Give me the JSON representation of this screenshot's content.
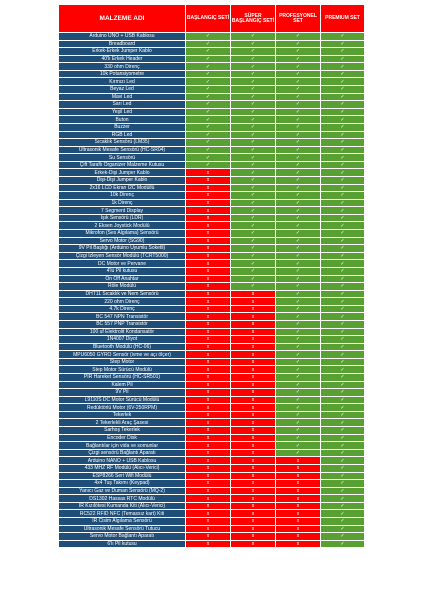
{
  "header": {
    "name": "MALZEME ADI",
    "sets": [
      "BAŞLANGIÇ SETİ",
      "SÜPER BAŞLANGIÇ SETİ",
      "PROFESYONEL SET",
      "PREMIUM SET"
    ]
  },
  "symbols": {
    "yes": "✓",
    "no": "x"
  },
  "colors": {
    "header": "#ff0000",
    "name_cell": "#1f4e79",
    "included": "#59a032",
    "excluded": "#ff0000"
  },
  "rows": [
    {
      "name": "Arduino UNO + USB Kablosu",
      "tier": 1
    },
    {
      "name": "Breadboard",
      "tier": 1
    },
    {
      "name": "Erkek-Erkek Jumper Kablo",
      "tier": 1
    },
    {
      "name": "40'lı Erkek Header",
      "tier": 1
    },
    {
      "name": "330 ohm Direnç",
      "tier": 1
    },
    {
      "name": "10k Potansiyometre",
      "tier": 1
    },
    {
      "name": "Kırmızı Led",
      "tier": 1
    },
    {
      "name": "Beyaz Led",
      "tier": 1
    },
    {
      "name": "Mavi Led",
      "tier": 1
    },
    {
      "name": "Sarı Led",
      "tier": 1
    },
    {
      "name": "Yeşil Led",
      "tier": 1
    },
    {
      "name": "Buton",
      "tier": 1
    },
    {
      "name": "Buzzer",
      "tier": 1
    },
    {
      "name": "RGB Led",
      "tier": 1
    },
    {
      "name": "Sıcaklık Sensörü (LM35)",
      "tier": 1
    },
    {
      "name": "Ultrasonik Mesafe Sensörü (HC-SR04)",
      "tier": 1
    },
    {
      "name": "Su Sensörü",
      "tier": 1
    },
    {
      "name": "Çift Taraflı Organizer Malzeme Kutusu",
      "tier": 1
    },
    {
      "name": "Erkek-Dişi Jumper Kablo",
      "tier": 2
    },
    {
      "name": "Dişi-Dişi Jumper Kablo",
      "tier": 2
    },
    {
      "name": "2x16 LCD Ekran I2C Modüllü",
      "tier": 2
    },
    {
      "name": "10k Direnç",
      "tier": 2
    },
    {
      "name": "1k Direnç",
      "tier": 2
    },
    {
      "name": "7 Segment Display",
      "tier": 2
    },
    {
      "name": "Işık Sensörü (LDR)",
      "tier": 2
    },
    {
      "name": "2 Eksen Joystick Modülü",
      "tier": 2
    },
    {
      "name": "Mikrofon (Ses Algılama) Sensörü",
      "tier": 2
    },
    {
      "name": "Servo Motor (SG90)",
      "tier": 2
    },
    {
      "name": "9V Pil Başlığı (Arduino Uyumlu Soketli)",
      "tier": 2
    },
    {
      "name": "Çizgi İzleyen Sensör Modülü (TCRT5000)",
      "tier": 2
    },
    {
      "name": "DC Motor ve Pervane",
      "tier": 2
    },
    {
      "name": "4'lü Pil kutusu",
      "tier": 2
    },
    {
      "name": "On Off Anahtar",
      "tier": 2
    },
    {
      "name": "Röle Modülü",
      "tier": 2
    },
    {
      "name": "DHT11 Sıcaklık ve Nem Sensörü",
      "tier": 3
    },
    {
      "name": "220 ohm Direnç",
      "tier": 3
    },
    {
      "name": "4.7k Direnç",
      "tier": 3
    },
    {
      "name": "BC 547 NPN Transistör",
      "tier": 3
    },
    {
      "name": "BC 557 PNP Transistör",
      "tier": 3
    },
    {
      "name": "100 uf Elektrolit Kondansatör",
      "tier": 3
    },
    {
      "name": "1N4007 Diyot",
      "tier": 3
    },
    {
      "name": "Bluetooth Modülü (HC-06)",
      "tier": 3
    },
    {
      "name": "MPU6050 GYRO Sensör (ivme ve açı ölçer)",
      "tier": 3
    },
    {
      "name": "Step Motor",
      "tier": 3
    },
    {
      "name": "Step Motor Sürücü Modülü",
      "tier": 3
    },
    {
      "name": "PIR Hareket Sensörü (HC-SR501)",
      "tier": 3
    },
    {
      "name": "Kalem Pil",
      "tier": 3
    },
    {
      "name": "9V Pil",
      "tier": 3
    },
    {
      "name": "L9110S DC Motor Sürücü Modülü",
      "tier": 3
    },
    {
      "name": "Redüktörlü Motor (6V-250RPM)",
      "tier": 3
    },
    {
      "name": "Tekerlek",
      "tier": 3
    },
    {
      "name": "2 Tekerlekli Araç Şasesi",
      "tier": 3
    },
    {
      "name": "Sarhoş Tekerlek",
      "tier": 3
    },
    {
      "name": "Encoder Disk",
      "tier": 3
    },
    {
      "name": "Bağlantılar için vida ve somunlar",
      "tier": 3
    },
    {
      "name": "Çizgi sensörü Bağlantı Aparatı",
      "tier": 3
    },
    {
      "name": "Arduino NANO + USB Kablosu",
      "tier": 4
    },
    {
      "name": "433 MHZ RF Modülü (Alıcı-Verici)",
      "tier": 4
    },
    {
      "name": "ESP8266 Seri Wifi Modülü",
      "tier": 4
    },
    {
      "name": "4x4 Tuş Takımı (Keypad)",
      "tier": 4
    },
    {
      "name": "Yanıcı Gaz ve Duman Sensörü (MQ-2)",
      "tier": 4
    },
    {
      "name": "DS1302 Hassas RTC Modülü",
      "tier": 4
    },
    {
      "name": "IR Kızılötesi Kumanda Kiti (Alıcı-Verici)",
      "tier": 4
    },
    {
      "name": "RC522 RFID NFC (Temassız kart) Kiti",
      "tier": 4
    },
    {
      "name": "IR Cisim Algılama Sensörü",
      "tier": 4
    },
    {
      "name": "Ultrasonik Mesafe Sensörü Tutucu",
      "tier": 4
    },
    {
      "name": "Servo Motor Bağlantı Aparatı",
      "tier": 4
    },
    {
      "name": "6'lı Pil kutusu",
      "tier": 4
    }
  ]
}
